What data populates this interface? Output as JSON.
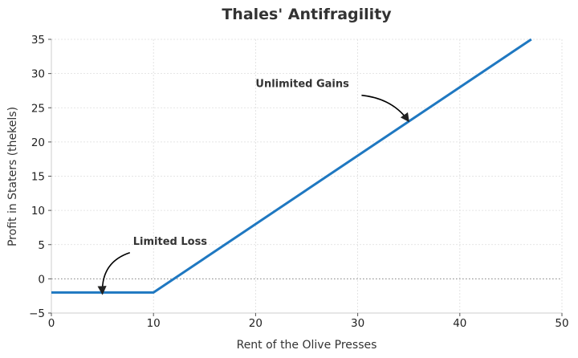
{
  "chart_data": {
    "type": "line",
    "title": "Thales' Antifragility",
    "xlabel": "Rent of the Olive Presses",
    "ylabel": "Profit in Staters (thekels)",
    "xlim": [
      0,
      50
    ],
    "ylim": [
      -5,
      35
    ],
    "xticks": [
      0,
      10,
      20,
      30,
      40,
      50
    ],
    "yticks": [
      -5,
      0,
      5,
      10,
      15,
      20,
      25,
      30,
      35
    ],
    "grid": true,
    "series": [
      {
        "color": "#1f78c1",
        "x": [
          0,
          10,
          47
        ],
        "y": [
          -2,
          -2,
          35
        ]
      }
    ],
    "reference_lines": [
      {
        "axis": "y",
        "value": 0,
        "style": "dotted"
      }
    ],
    "annotations": [
      {
        "text": "Limited Loss",
        "text_x": 8,
        "text_y": 5,
        "point_x": 5,
        "point_y": -2
      },
      {
        "text": "Unlimited Gains",
        "text_x": 20,
        "text_y": 28,
        "point_x": 35,
        "point_y": 23
      }
    ]
  }
}
